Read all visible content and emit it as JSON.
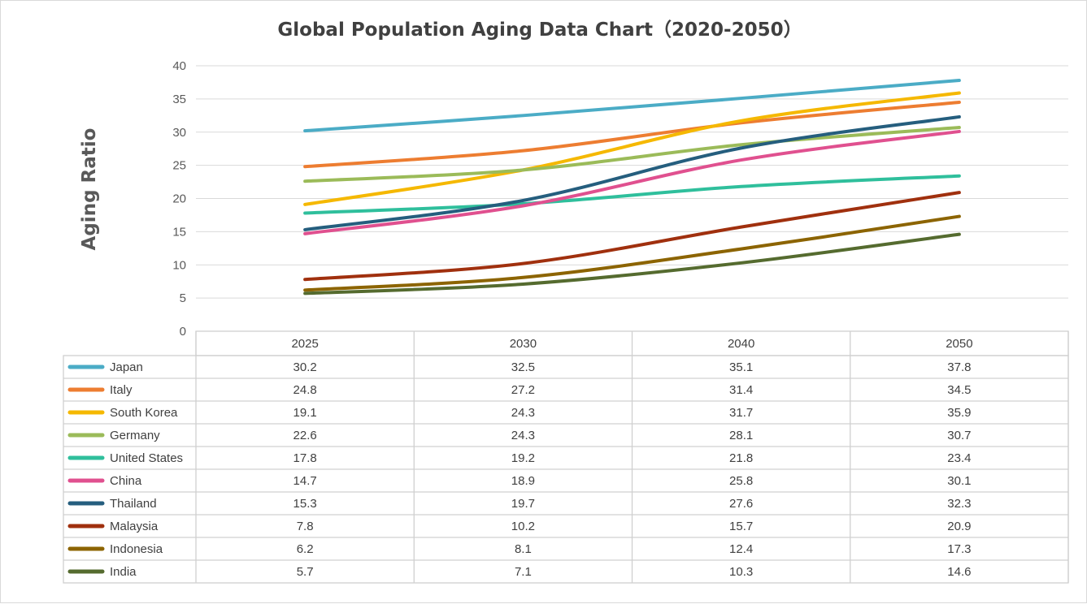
{
  "chart_data": {
    "type": "line",
    "title": "Global Population Aging Data Chart（2020-2050）",
    "xlabel": "",
    "ylabel": "Aging Ratio",
    "ylim": [
      0,
      40
    ],
    "yticks": [
      0,
      5,
      10,
      15,
      20,
      25,
      30,
      35,
      40
    ],
    "grid": true,
    "legend": "data-table",
    "categories": [
      "2025",
      "2030",
      "2040",
      "2050"
    ],
    "series": [
      {
        "name": "Japan",
        "color": "#4bacc6",
        "values": [
          30.2,
          32.5,
          35.1,
          37.8
        ]
      },
      {
        "name": "Italy",
        "color": "#ed7d31",
        "values": [
          24.8,
          27.2,
          31.4,
          34.5
        ]
      },
      {
        "name": "South Korea",
        "color": "#f5b800",
        "values": [
          19.1,
          24.3,
          31.7,
          35.9
        ]
      },
      {
        "name": "Germany",
        "color": "#9bbb59",
        "values": [
          22.6,
          24.3,
          28.1,
          30.7
        ]
      },
      {
        "name": "United States",
        "color": "#2fbf9c",
        "values": [
          17.8,
          19.2,
          21.8,
          23.4
        ]
      },
      {
        "name": "China",
        "color": "#e0508f",
        "values": [
          14.7,
          18.9,
          25.8,
          30.1
        ]
      },
      {
        "name": "Thailand",
        "color": "#255e7e",
        "values": [
          15.3,
          19.7,
          27.6,
          32.3
        ]
      },
      {
        "name": "Malaysia",
        "color": "#a0300e",
        "values": [
          7.8,
          10.2,
          15.7,
          20.9
        ]
      },
      {
        "name": "Indonesia",
        "color": "#8c6400",
        "values": [
          6.2,
          8.1,
          12.4,
          17.3
        ]
      },
      {
        "name": "India",
        "color": "#556b2f",
        "values": [
          5.7,
          7.1,
          10.3,
          14.6
        ]
      }
    ]
  }
}
